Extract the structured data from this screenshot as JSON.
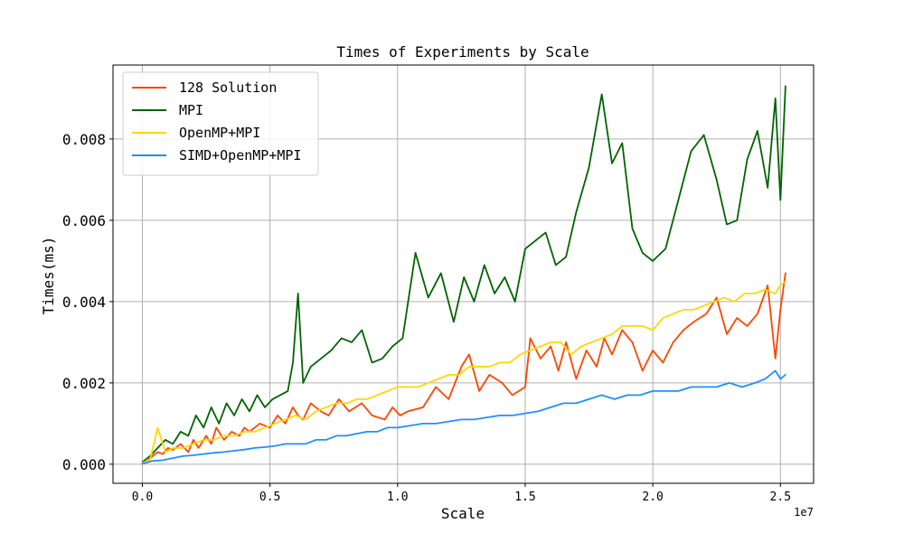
{
  "chart_data": {
    "type": "line",
    "title": "Times of Experiments by Scale",
    "xlabel": "Scale",
    "ylabel": "Times(ms)",
    "x_offset_label": "1e7",
    "xlim": [
      -1150000,
      26300000
    ],
    "ylim": [
      -0.00047,
      0.00982
    ],
    "xticks": [
      0,
      5000000,
      10000000,
      15000000,
      20000000,
      25000000
    ],
    "xtick_labels": [
      "0.0",
      "0.5",
      "1.0",
      "1.5",
      "2.0",
      "2.5"
    ],
    "yticks": [
      0,
      0.002,
      0.004,
      0.006,
      0.008
    ],
    "ytick_labels": [
      "0.000",
      "0.002",
      "0.004",
      "0.006",
      "0.008"
    ],
    "grid": true,
    "legend_position": "top-left",
    "series": [
      {
        "name": "128 Solution",
        "color": "#ff4500",
        "x": [
          0,
          200000,
          400000,
          600000,
          800000,
          1000000,
          1200000,
          1500000,
          1800000,
          2000000,
          2200000,
          2500000,
          2700000,
          2900000,
          3200000,
          3500000,
          3800000,
          4000000,
          4200000,
          4600000,
          5000000,
          5300000,
          5600000,
          5900000,
          6100000,
          6300000,
          6600000,
          7000000,
          7300000,
          7700000,
          8100000,
          8600000,
          9000000,
          9500000,
          9800000,
          10100000,
          10400000,
          11000000,
          11500000,
          12000000,
          12500000,
          12800000,
          13200000,
          13600000,
          14100000,
          14500000,
          15000000,
          15200000,
          15600000,
          16000000,
          16300000,
          16600000,
          17000000,
          17400000,
          17800000,
          18100000,
          18400000,
          18800000,
          19200000,
          19600000,
          20000000,
          20400000,
          20800000,
          21200000,
          21600000,
          22100000,
          22500000,
          22900000,
          23300000,
          23700000,
          24100000,
          24500000,
          24800000,
          25000000,
          25200000
        ],
        "values": [
          2e-05,
          8e-05,
          0.0002,
          0.0003,
          0.00025,
          0.0004,
          0.00035,
          0.0005,
          0.0003,
          0.0006,
          0.0004,
          0.0007,
          0.0005,
          0.0009,
          0.0006,
          0.0008,
          0.0007,
          0.0009,
          0.0008,
          0.001,
          0.0009,
          0.0012,
          0.001,
          0.0014,
          0.0012,
          0.0011,
          0.0015,
          0.0013,
          0.0012,
          0.0016,
          0.0013,
          0.0015,
          0.0012,
          0.0011,
          0.0014,
          0.0012,
          0.0013,
          0.0014,
          0.0019,
          0.0016,
          0.0024,
          0.0027,
          0.0018,
          0.0022,
          0.002,
          0.0017,
          0.0019,
          0.0031,
          0.0026,
          0.0029,
          0.0023,
          0.003,
          0.0021,
          0.0028,
          0.0024,
          0.0031,
          0.0027,
          0.0033,
          0.003,
          0.0023,
          0.0028,
          0.0025,
          0.003,
          0.0033,
          0.0035,
          0.0037,
          0.0041,
          0.0032,
          0.0036,
          0.0034,
          0.0037,
          0.0044,
          0.0026,
          0.0038,
          0.0047
        ]
      },
      {
        "name": "MPI",
        "color": "#006400",
        "x": [
          0,
          300000,
          600000,
          900000,
          1200000,
          1500000,
          1800000,
          2100000,
          2400000,
          2700000,
          3000000,
          3300000,
          3600000,
          3900000,
          4200000,
          4500000,
          4800000,
          5100000,
          5400000,
          5700000,
          5900000,
          6100000,
          6300000,
          6600000,
          7000000,
          7400000,
          7800000,
          8200000,
          8600000,
          9000000,
          9400000,
          9800000,
          10200000,
          10700000,
          11200000,
          11700000,
          12200000,
          12600000,
          13000000,
          13400000,
          13800000,
          14200000,
          14600000,
          15000000,
          15400000,
          15800000,
          16200000,
          16600000,
          17000000,
          17500000,
          18000000,
          18400000,
          18800000,
          19200000,
          19600000,
          20000000,
          20500000,
          21000000,
          21500000,
          22000000,
          22500000,
          22900000,
          23300000,
          23700000,
          24100000,
          24500000,
          24800000,
          25000000,
          25200000
        ],
        "values": [
          5e-05,
          0.0002,
          0.0004,
          0.0006,
          0.0005,
          0.0008,
          0.0007,
          0.0012,
          0.0009,
          0.0014,
          0.001,
          0.0015,
          0.0012,
          0.0016,
          0.0013,
          0.0017,
          0.0014,
          0.0016,
          0.0017,
          0.0018,
          0.0025,
          0.0042,
          0.002,
          0.0024,
          0.0026,
          0.0028,
          0.0031,
          0.003,
          0.0033,
          0.0025,
          0.0026,
          0.0029,
          0.0031,
          0.0052,
          0.0041,
          0.0047,
          0.0035,
          0.0046,
          0.004,
          0.0049,
          0.0042,
          0.0046,
          0.004,
          0.0053,
          0.0055,
          0.0057,
          0.0049,
          0.0051,
          0.0062,
          0.0073,
          0.0091,
          0.0074,
          0.0079,
          0.0058,
          0.0052,
          0.005,
          0.0053,
          0.0065,
          0.0077,
          0.0081,
          0.007,
          0.0059,
          0.006,
          0.0075,
          0.0082,
          0.0068,
          0.009,
          0.0065,
          0.0093
        ]
      },
      {
        "name": "OpenMP+MPI",
        "color": "#ffd700",
        "x": [
          0,
          300000,
          600000,
          900000,
          1200000,
          1600000,
          2000000,
          2400000,
          2800000,
          3200000,
          3600000,
          4000000,
          4400000,
          4800000,
          5200000,
          5600000,
          6000000,
          6400000,
          6800000,
          7200000,
          7600000,
          8000000,
          8400000,
          8800000,
          9200000,
          9600000,
          10000000,
          10400000,
          10800000,
          11200000,
          11600000,
          12000000,
          12400000,
          12800000,
          13200000,
          13600000,
          14000000,
          14400000,
          14800000,
          15200000,
          15600000,
          16000000,
          16400000,
          16800000,
          17200000,
          17600000,
          18000000,
          18400000,
          18800000,
          19200000,
          19600000,
          20000000,
          20400000,
          20800000,
          21200000,
          21600000,
          22000000,
          22400000,
          22800000,
          23200000,
          23600000,
          24000000,
          24400000,
          24800000,
          25000000,
          25200000
        ],
        "values": [
          3e-05,
          0.0001,
          0.0009,
          0.0003,
          0.0004,
          0.0004,
          0.0005,
          0.0006,
          0.0006,
          0.0007,
          0.0007,
          0.0008,
          0.0008,
          0.0009,
          0.001,
          0.0011,
          0.0012,
          0.0011,
          0.0013,
          0.0014,
          0.0015,
          0.0015,
          0.0016,
          0.0016,
          0.0017,
          0.0018,
          0.0019,
          0.0019,
          0.0019,
          0.002,
          0.0021,
          0.0022,
          0.0022,
          0.0024,
          0.0024,
          0.0024,
          0.0025,
          0.0025,
          0.0027,
          0.0028,
          0.0029,
          0.003,
          0.003,
          0.0027,
          0.0029,
          0.003,
          0.0031,
          0.0032,
          0.0034,
          0.0034,
          0.0034,
          0.0033,
          0.0036,
          0.0037,
          0.0038,
          0.0038,
          0.0039,
          0.004,
          0.0041,
          0.004,
          0.0042,
          0.0042,
          0.0043,
          0.0042,
          0.0044,
          0.0045
        ]
      },
      {
        "name": "SIMD+OpenMP+MPI",
        "color": "#1e90ff",
        "x": [
          0,
          400000,
          800000,
          1200000,
          1600000,
          2000000,
          2400000,
          2800000,
          3200000,
          3600000,
          4000000,
          4400000,
          4800000,
          5200000,
          5600000,
          6000000,
          6400000,
          6800000,
          7200000,
          7600000,
          8000000,
          8400000,
          8800000,
          9200000,
          9600000,
          10000000,
          10500000,
          11000000,
          11500000,
          12000000,
          12500000,
          13000000,
          13500000,
          14000000,
          14500000,
          15000000,
          15500000,
          16000000,
          16500000,
          17000000,
          17500000,
          18000000,
          18500000,
          19000000,
          19500000,
          20000000,
          20500000,
          21000000,
          21500000,
          22000000,
          22500000,
          23000000,
          23500000,
          24000000,
          24400000,
          24800000,
          25000000,
          25200000
        ],
        "values": [
          1e-05,
          8e-05,
          0.0001,
          0.00015,
          0.0002,
          0.00022,
          0.00025,
          0.00028,
          0.0003,
          0.00033,
          0.00036,
          0.0004,
          0.00042,
          0.00045,
          0.0005,
          0.0005,
          0.0005,
          0.0006,
          0.0006,
          0.0007,
          0.0007,
          0.00075,
          0.0008,
          0.0008,
          0.0009,
          0.0009,
          0.00095,
          0.001,
          0.001,
          0.00105,
          0.0011,
          0.0011,
          0.00115,
          0.0012,
          0.0012,
          0.00125,
          0.0013,
          0.0014,
          0.0015,
          0.0015,
          0.0016,
          0.0017,
          0.0016,
          0.0017,
          0.0017,
          0.0018,
          0.0018,
          0.0018,
          0.0019,
          0.0019,
          0.0019,
          0.002,
          0.0019,
          0.002,
          0.0021,
          0.0023,
          0.0021,
          0.0022
        ]
      }
    ]
  }
}
